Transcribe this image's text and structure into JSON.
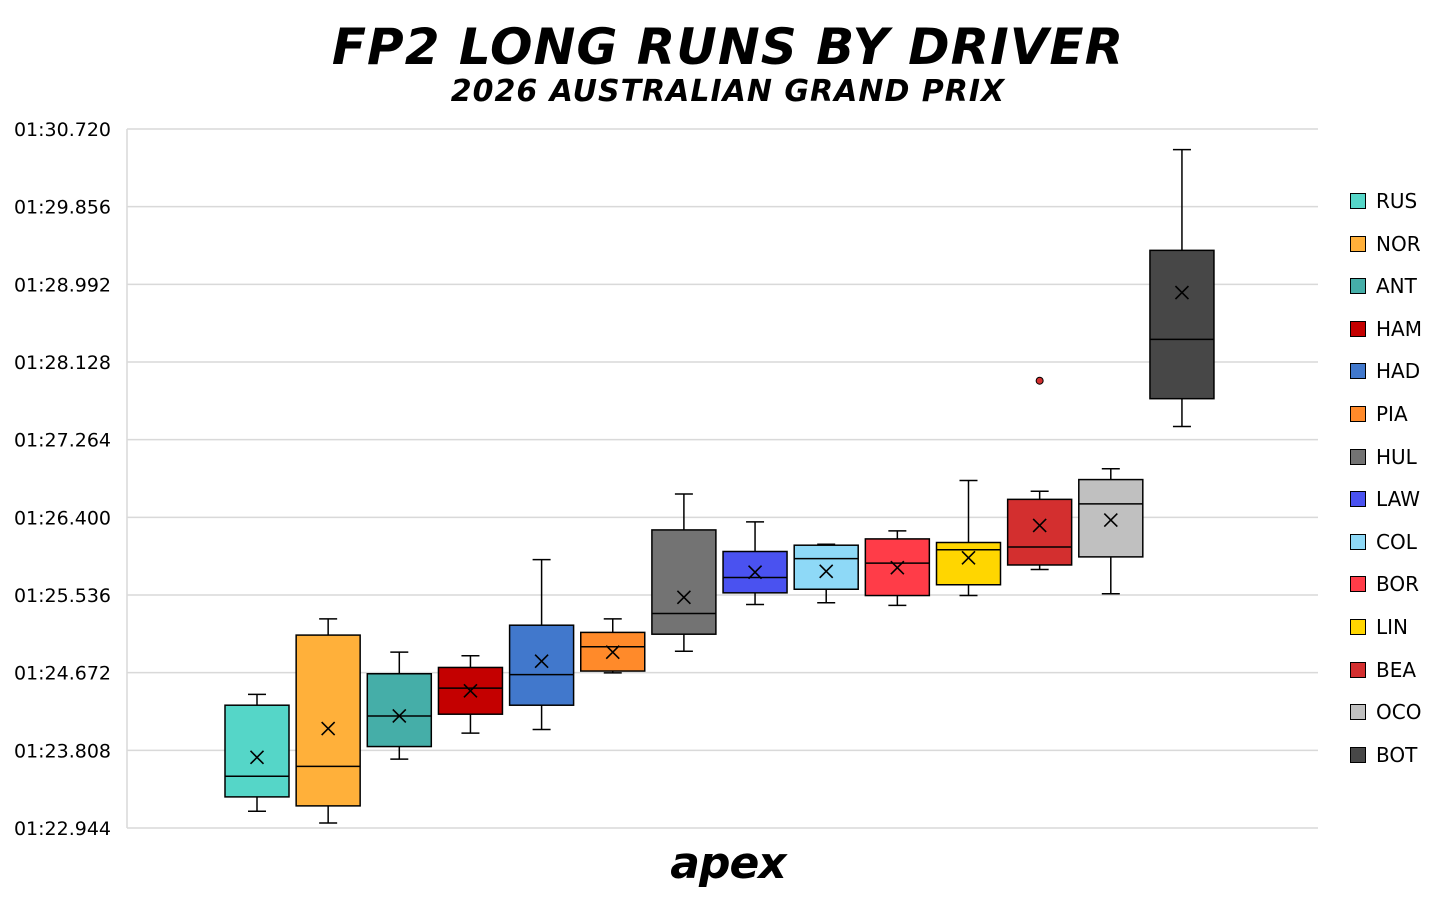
{
  "title": "FP2 LONG RUNS BY DRIVER",
  "subtitle": "2026 AUSTRALIAN GRAND PRIX",
  "brand": "apex",
  "chart_data": {
    "type": "box",
    "title": "FP2 LONG RUNS BY DRIVER",
    "subtitle": "2026 AUSTRALIAN GRAND PRIX",
    "xlabel": "",
    "ylabel": "",
    "y_unit": "seconds",
    "ylim": [
      82.944,
      90.72
    ],
    "yticks": [
      82.944,
      83.808,
      84.672,
      85.536,
      86.4,
      87.264,
      88.128,
      88.992,
      89.856,
      90.72
    ],
    "ytick_labels": [
      "01:22.944",
      "01:23.808",
      "01:24.672",
      "01:25.536",
      "01:26.400",
      "01:27.264",
      "01:28.128",
      "01:28.992",
      "01:29.856",
      "01:30.720"
    ],
    "grid": true,
    "legend": "right",
    "series": [
      {
        "name": "RUS",
        "color": "#55D6C8",
        "min": 83.13,
        "q1": 83.29,
        "median": 83.52,
        "q3": 84.31,
        "max": 84.43,
        "mean": 83.73,
        "outliers": []
      },
      {
        "name": "NOR",
        "color": "#FFB03A",
        "min": 83.0,
        "q1": 83.19,
        "median": 83.63,
        "q3": 85.09,
        "max": 85.27,
        "mean": 84.05,
        "outliers": []
      },
      {
        "name": "ANT",
        "color": "#45AEA8",
        "min": 83.71,
        "q1": 83.85,
        "median": 84.19,
        "q3": 84.66,
        "max": 84.9,
        "mean": 84.19,
        "outliers": []
      },
      {
        "name": "HAM",
        "color": "#C40000",
        "min": 84.0,
        "q1": 84.21,
        "median": 84.5,
        "q3": 84.73,
        "max": 84.86,
        "mean": 84.47,
        "outliers": []
      },
      {
        "name": "HAD",
        "color": "#4178CC",
        "min": 84.04,
        "q1": 84.31,
        "median": 84.65,
        "q3": 85.2,
        "max": 85.93,
        "mean": 84.8,
        "outliers": []
      },
      {
        "name": "PIA",
        "color": "#FF8A2A",
        "min": 84.67,
        "q1": 84.69,
        "median": 84.96,
        "q3": 85.12,
        "max": 85.27,
        "mean": 84.9,
        "outliers": []
      },
      {
        "name": "HUL",
        "color": "#737373",
        "min": 84.91,
        "q1": 85.1,
        "median": 85.33,
        "q3": 86.26,
        "max": 86.66,
        "mean": 85.51,
        "outliers": []
      },
      {
        "name": "LAW",
        "color": "#4A52F0",
        "min": 85.43,
        "q1": 85.56,
        "median": 85.73,
        "q3": 86.02,
        "max": 86.35,
        "mean": 85.79,
        "outliers": []
      },
      {
        "name": "COL",
        "color": "#8ED9F7",
        "min": 85.45,
        "q1": 85.6,
        "median": 85.94,
        "q3": 86.09,
        "max": 86.1,
        "mean": 85.8,
        "outliers": []
      },
      {
        "name": "BOR",
        "color": "#FF3C48",
        "min": 85.42,
        "q1": 85.53,
        "median": 85.89,
        "q3": 86.16,
        "max": 86.25,
        "mean": 85.84,
        "outliers": []
      },
      {
        "name": "LIN",
        "color": "#FFD600",
        "min": 85.53,
        "q1": 85.65,
        "median": 86.04,
        "q3": 86.12,
        "max": 86.81,
        "mean": 85.95,
        "outliers": []
      },
      {
        "name": "BEA",
        "color": "#D32F2F",
        "min": 85.82,
        "q1": 85.87,
        "median": 86.07,
        "q3": 86.6,
        "max": 86.69,
        "mean": 86.31,
        "outliers": [
          87.92
        ]
      },
      {
        "name": "OCO",
        "color": "#C0C0C0",
        "min": 85.55,
        "q1": 85.96,
        "median": 86.55,
        "q3": 86.82,
        "max": 86.94,
        "mean": 86.37,
        "outliers": []
      },
      {
        "name": "BOT",
        "color": "#474747",
        "min": 87.41,
        "q1": 87.72,
        "median": 88.38,
        "q3": 89.37,
        "max": 90.49,
        "mean": 88.9,
        "outliers": []
      }
    ]
  }
}
